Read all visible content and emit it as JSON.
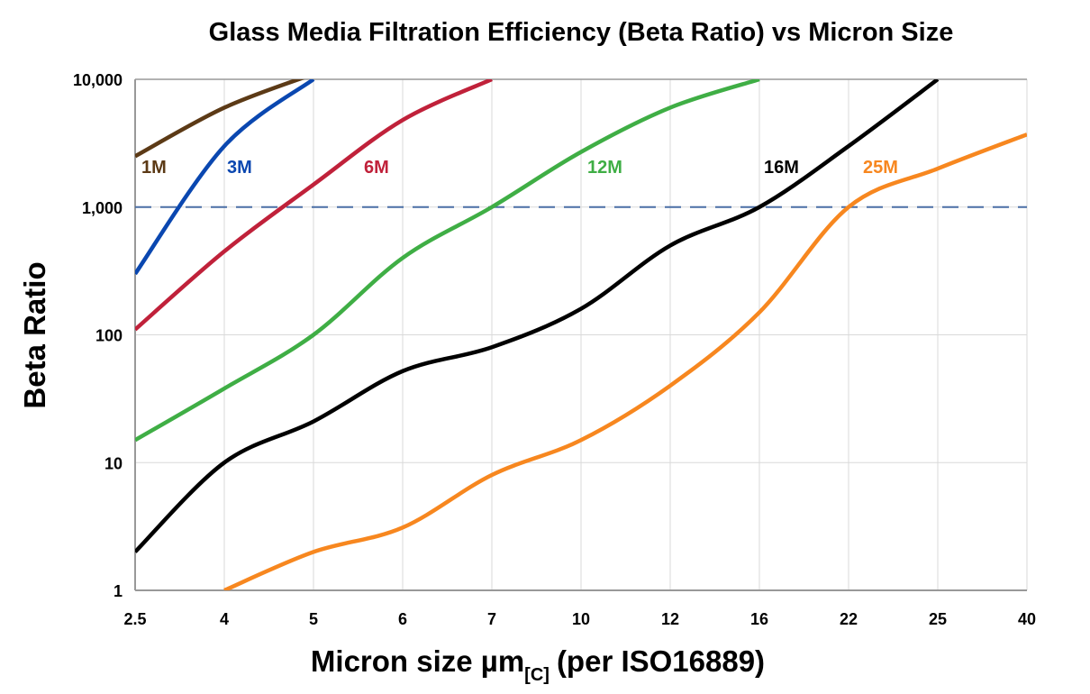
{
  "chart_data": {
    "type": "line",
    "title": "Glass Media Filtration Efficiency (Beta Ratio) vs Micron Size",
    "xlabel": "Micron size µm",
    "xlabel_subscript": "[C]",
    "xlabel_suffix": "(per ISO16889)",
    "ylabel": "Beta Ratio",
    "y_scale": "log",
    "ylim": [
      1,
      10000
    ],
    "yticks": [
      "1",
      "10",
      "100",
      "1,000",
      "10,000"
    ],
    "ytick_values": [
      1,
      10,
      100,
      1000,
      10000
    ],
    "categories": [
      "2.5",
      "4",
      "5",
      "6",
      "7",
      "10",
      "12",
      "16",
      "22",
      "25",
      "40"
    ],
    "grid": true,
    "reference_line": {
      "value": 1000,
      "style": "dashed",
      "color": "#4a6fa5"
    },
    "series": [
      {
        "name": "1M",
        "color": "#5c3a16",
        "values": [
          2500,
          6000,
          11000,
          null,
          null,
          null,
          null,
          null,
          null,
          null,
          null
        ]
      },
      {
        "name": "3M",
        "color": "#0a47b0",
        "values": [
          300,
          3000,
          10000,
          null,
          null,
          null,
          null,
          null,
          null,
          null,
          null
        ]
      },
      {
        "name": "6M",
        "color": "#c0213a",
        "values": [
          110,
          450,
          1500,
          4800,
          10000,
          null,
          null,
          null,
          null,
          null,
          null
        ]
      },
      {
        "name": "12M",
        "color": "#3fae45",
        "values": [
          15,
          38,
          100,
          400,
          1000,
          2700,
          6000,
          10000,
          null,
          null,
          null
        ]
      },
      {
        "name": "16M",
        "color": "#000000",
        "values": [
          2,
          10,
          21,
          52,
          80,
          160,
          500,
          1000,
          3000,
          10000,
          null
        ]
      },
      {
        "name": "25M",
        "color": "#f7871f",
        "values": [
          null,
          1,
          2,
          3.1,
          8,
          15,
          40,
          150,
          1000,
          2000,
          3700
        ]
      }
    ]
  }
}
